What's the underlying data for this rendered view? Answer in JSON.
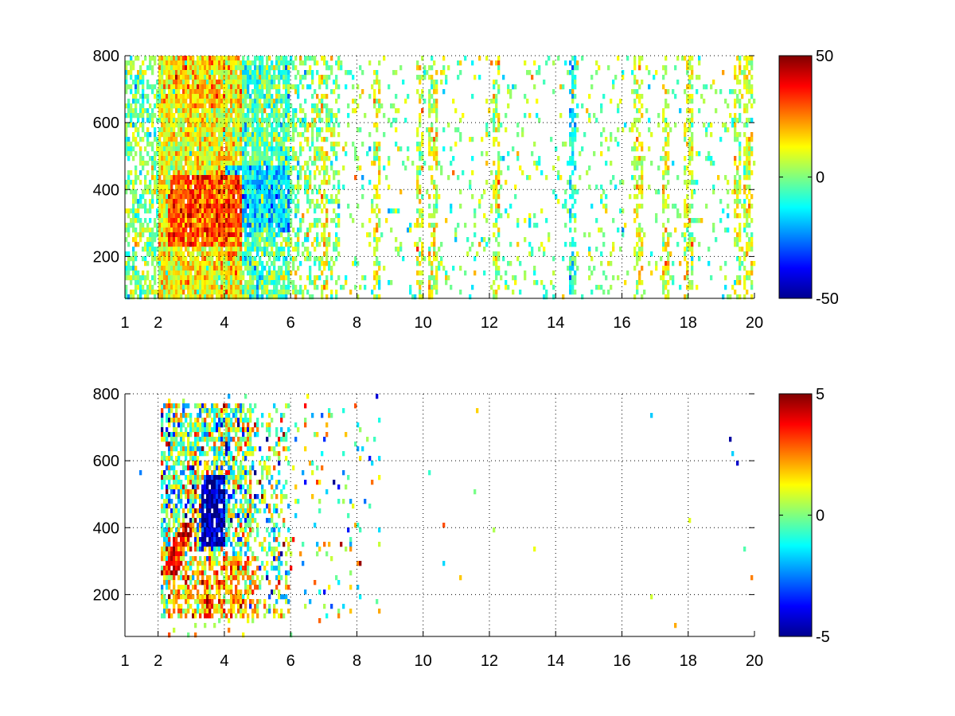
{
  "colormap": "jet",
  "chart_data": [
    {
      "type": "heatmap",
      "title": "",
      "xlabel": "",
      "ylabel": "",
      "grid": true,
      "xlim": [
        1,
        20
      ],
      "ylim": [
        75,
        800
      ],
      "x_ticks": [
        1,
        2,
        4,
        6,
        8,
        10,
        12,
        14,
        16,
        18,
        20
      ],
      "y_ticks": [
        200,
        400,
        600,
        800
      ],
      "colorbar": {
        "min": -50,
        "max": 50,
        "ticks": [
          -50,
          0,
          50
        ]
      },
      "structure": {
        "hot_band": {
          "x": [
            2.3,
            4.5
          ],
          "y": [
            230,
            450
          ],
          "value": 35
        },
        "cool_region": {
          "x": [
            4.0,
            6.0
          ],
          "y": [
            270,
            470
          ],
          "value": -15
        },
        "striped_columns_x": [
          7.0,
          8.6,
          9.9,
          10.3,
          12.2,
          14.5,
          16.5,
          17.3,
          18.0,
          19.5,
          19.8
        ]
      }
    },
    {
      "type": "heatmap",
      "title": "",
      "xlabel": "",
      "ylabel": "",
      "grid": true,
      "xlim": [
        1,
        20
      ],
      "ylim": [
        75,
        800
      ],
      "x_ticks": [
        1,
        2,
        4,
        6,
        8,
        10,
        12,
        14,
        16,
        18,
        20
      ],
      "y_ticks": [
        200,
        400,
        600,
        800
      ],
      "colorbar": {
        "min": -5,
        "max": 5,
        "ticks": [
          -5,
          0,
          5
        ]
      },
      "structure": {
        "data_extent_x": [
          2.1,
          8.7
        ],
        "negative_core": {
          "x": [
            3.3,
            4.0
          ],
          "y": [
            350,
            560
          ],
          "value": -4.5
        },
        "positive_arc": {
          "x": [
            2.3,
            3.3
          ],
          "y": [
            260,
            420
          ],
          "value": 3.5
        }
      }
    }
  ]
}
